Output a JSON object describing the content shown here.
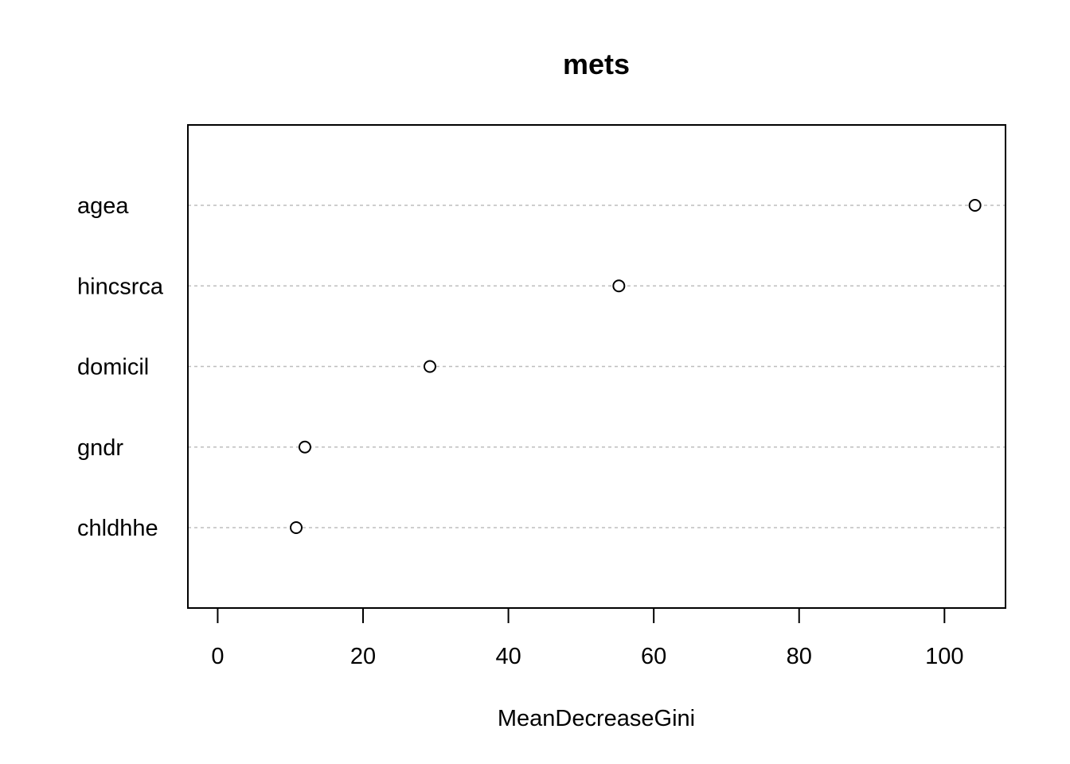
{
  "chart_data": {
    "type": "scatter",
    "title": "mets",
    "xlabel": "MeanDecreaseGini",
    "ylabel": "",
    "categories": [
      "agea",
      "hincsrca",
      "domicil",
      "gndr",
      "chldhhe"
    ],
    "values": [
      104.2,
      55.2,
      29.2,
      12.0,
      10.8
    ],
    "xlim": [
      -4.1,
      108.4
    ],
    "xticks": [
      "0",
      "20",
      "40",
      "60",
      "80",
      "100"
    ],
    "grid": "horizontal dotted",
    "legend": "none",
    "colors": {
      "grid": "#bebebe",
      "frame": "#000000",
      "point_stroke": "#000000",
      "point_fill": "#ffffff"
    }
  }
}
